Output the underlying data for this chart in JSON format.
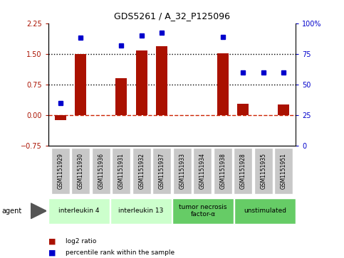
{
  "title": "GDS5261 / A_32_P125096",
  "samples": [
    "GSM1151929",
    "GSM1151930",
    "GSM1151936",
    "GSM1151931",
    "GSM1151932",
    "GSM1151937",
    "GSM1151933",
    "GSM1151934",
    "GSM1151938",
    "GSM1151928",
    "GSM1151935",
    "GSM1151951"
  ],
  "log2_ratio": [
    -0.12,
    1.49,
    0.0,
    0.9,
    1.58,
    1.68,
    0.0,
    0.0,
    1.52,
    0.28,
    0.0,
    0.26
  ],
  "percentile": [
    35,
    88,
    0,
    82,
    90,
    92,
    0,
    0,
    89,
    60,
    60,
    60
  ],
  "bar_color": "#AA1100",
  "dot_color": "#0000CC",
  "ylim_left": [
    -0.75,
    2.25
  ],
  "ylim_right": [
    0,
    100
  ],
  "yticks_left": [
    -0.75,
    0.0,
    0.75,
    1.5,
    2.25
  ],
  "yticks_right": [
    0,
    25,
    50,
    75,
    100
  ],
  "hlines": [
    0.75,
    1.5
  ],
  "hline_zero_color": "#CC2200",
  "groups": [
    {
      "label": "interleukin 4",
      "start": 0,
      "end": 3,
      "color": "#CCFFCC"
    },
    {
      "label": "interleukin 13",
      "start": 3,
      "end": 6,
      "color": "#CCFFCC"
    },
    {
      "label": "tumor necrosis\nfactor-α",
      "start": 6,
      "end": 9,
      "color": "#66CC66"
    },
    {
      "label": "unstimulated",
      "start": 9,
      "end": 12,
      "color": "#66CC66"
    }
  ],
  "agent_label": "agent",
  "legend_items": [
    {
      "label": "log2 ratio",
      "color": "#AA1100"
    },
    {
      "label": "percentile rank within the sample",
      "color": "#0000CC"
    }
  ],
  "tick_label_color_left": "#AA1100",
  "tick_label_color_right": "#0000CC",
  "bar_width": 0.55,
  "sample_box_color": "#C8C8C8"
}
